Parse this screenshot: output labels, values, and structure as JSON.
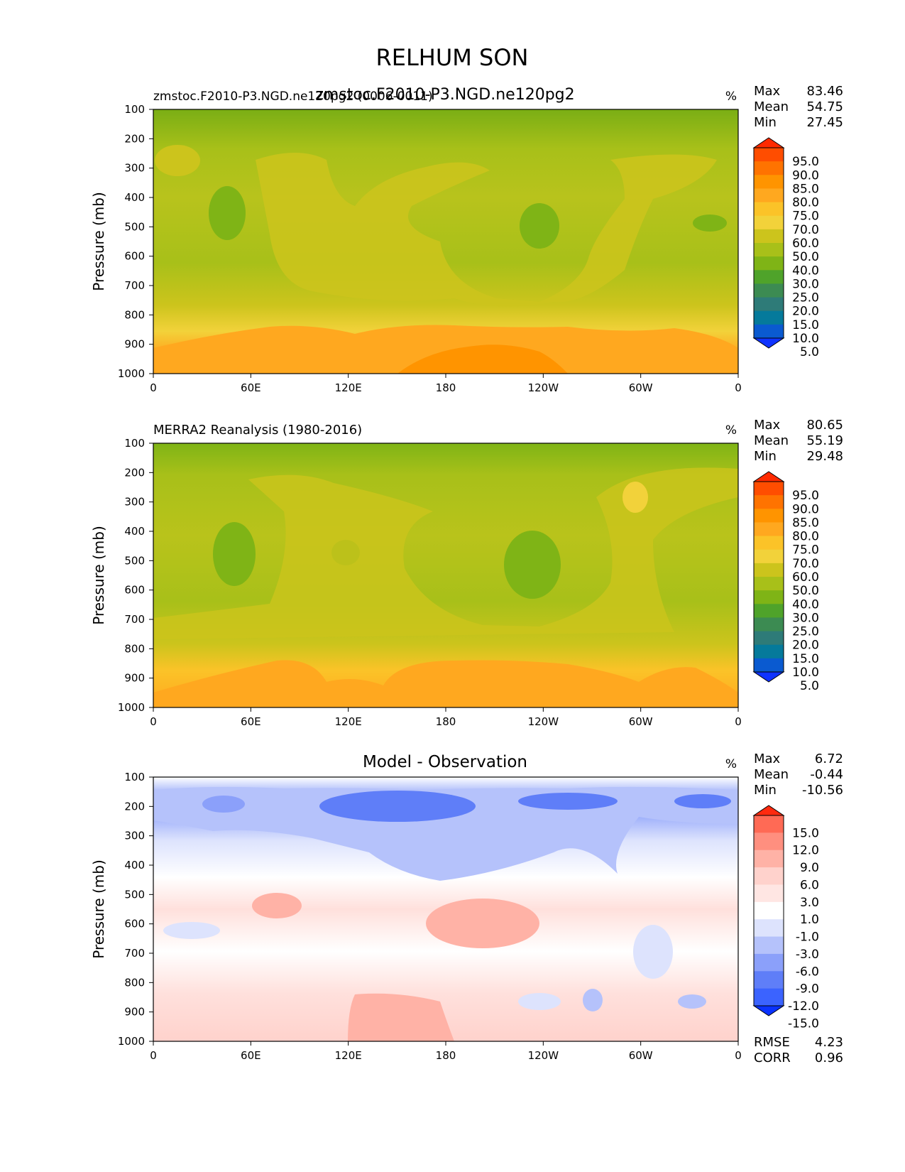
{
  "figure": {
    "title": "RELHUM SON"
  },
  "chart_data": [
    {
      "type": "heatmap",
      "panel": "test",
      "title_left": "zmstoc.F2010-P3.NGD.ne120pg2 (0006-0011)",
      "title_center": "zmstoc.F2010-P3.NGD.ne120pg2",
      "units": "%",
      "ylabel": "Pressure (mb)",
      "ylim": [
        1000,
        100
      ],
      "yticks": [
        "100",
        "200",
        "300",
        "400",
        "500",
        "600",
        "700",
        "800",
        "900",
        "1000"
      ],
      "xlim": [
        0,
        360
      ],
      "xticks": [
        "0",
        "60E",
        "120E",
        "180",
        "120W",
        "60W",
        "0"
      ],
      "stats": [
        {
          "label": "Max",
          "value": "83.46"
        },
        {
          "label": "Mean",
          "value": "54.75"
        },
        {
          "label": "Min",
          "value": "27.45"
        }
      ],
      "colorbar": {
        "labels": [
          "95.0",
          "90.0",
          "85.0",
          "80.0",
          "75.0",
          "70.0",
          "60.0",
          "50.0",
          "40.0",
          "30.0",
          "25.0",
          "20.0",
          "15.0",
          "10.0",
          "5.0"
        ],
        "colors": [
          "#ff2a00",
          "#ff4d00",
          "#ff7300",
          "#ff9400",
          "#ffa81f",
          "#fbc328",
          "#f2d23a",
          "#ccc41c",
          "#a8c019",
          "#7fb416",
          "#4fa32a",
          "#3c8b52",
          "#2e7b78",
          "#057a9b",
          "#0a5ad0",
          "#0f33ff"
        ]
      }
    },
    {
      "type": "heatmap",
      "panel": "reference",
      "title_left": "MERRA2 Reanalysis (1980-2016)",
      "title_center": "",
      "units": "%",
      "ylabel": "Pressure (mb)",
      "ylim": [
        1000,
        100
      ],
      "yticks": [
        "100",
        "200",
        "300",
        "400",
        "500",
        "600",
        "700",
        "800",
        "900",
        "1000"
      ],
      "xlim": [
        0,
        360
      ],
      "xticks": [
        "0",
        "60E",
        "120E",
        "180",
        "120W",
        "60W",
        "0"
      ],
      "stats": [
        {
          "label": "Max",
          "value": "80.65"
        },
        {
          "label": "Mean",
          "value": "55.19"
        },
        {
          "label": "Min",
          "value": "29.48"
        }
      ],
      "colorbar": {
        "labels": [
          "95.0",
          "90.0",
          "85.0",
          "80.0",
          "75.0",
          "70.0",
          "60.0",
          "50.0",
          "40.0",
          "30.0",
          "25.0",
          "20.0",
          "15.0",
          "10.0",
          "5.0"
        ],
        "colors": [
          "#ff2a00",
          "#ff4d00",
          "#ff7300",
          "#ff9400",
          "#ffa81f",
          "#fbc328",
          "#f2d23a",
          "#ccc41c",
          "#a8c019",
          "#7fb416",
          "#4fa32a",
          "#3c8b52",
          "#2e7b78",
          "#057a9b",
          "#0a5ad0",
          "#0f33ff"
        ]
      }
    },
    {
      "type": "heatmap",
      "panel": "difference",
      "title_left": "",
      "title_center": "Model - Observation",
      "units": "%",
      "ylabel": "Pressure (mb)",
      "ylim": [
        1000,
        100
      ],
      "yticks": [
        "100",
        "200",
        "300",
        "400",
        "500",
        "600",
        "700",
        "800",
        "900",
        "1000"
      ],
      "xlim": [
        0,
        360
      ],
      "xticks": [
        "0",
        "60E",
        "120E",
        "180",
        "120W",
        "60W",
        "0"
      ],
      "stats": [
        {
          "label": "Max",
          "value": "6.72"
        },
        {
          "label": "Mean",
          "value": "-0.44"
        },
        {
          "label": "Min",
          "value": "-10.56"
        }
      ],
      "extra_stats": [
        {
          "label": "RMSE",
          "value": "4.23"
        },
        {
          "label": "CORR",
          "value": "0.96"
        }
      ],
      "colorbar": {
        "labels": [
          "15.0",
          "12.0",
          "9.0",
          "6.0",
          "3.0",
          "1.0",
          "-1.0",
          "-3.0",
          "-6.0",
          "-9.0",
          "-12.0",
          "-15.0"
        ],
        "colors": [
          "#ff2a0f",
          "#ff6a55",
          "#ff8f7f",
          "#ffb2a6",
          "#ffd2cc",
          "#ffe6e3",
          "#ffffff",
          "#dde3fd",
          "#b5c2fb",
          "#8ba0fa",
          "#5f7ef8",
          "#3b63ff",
          "#0a32ff"
        ]
      }
    }
  ]
}
